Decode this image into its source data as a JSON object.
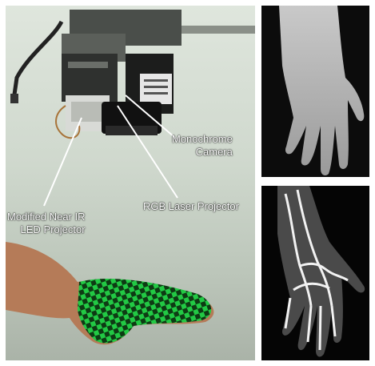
{
  "labels": {
    "monochrome_line1": "Monochrome",
    "monochrome_line2": "Camera",
    "rgb_laser": "RGB Laser Projector",
    "near_ir_line1": "Modified Near IR",
    "near_ir_line2": "LED Projector"
  },
  "colors": {
    "background_top": "#dfe6dd",
    "pattern_green": "#22c944",
    "label_text": "#ffffff",
    "right_panel_bg": "#000000"
  }
}
